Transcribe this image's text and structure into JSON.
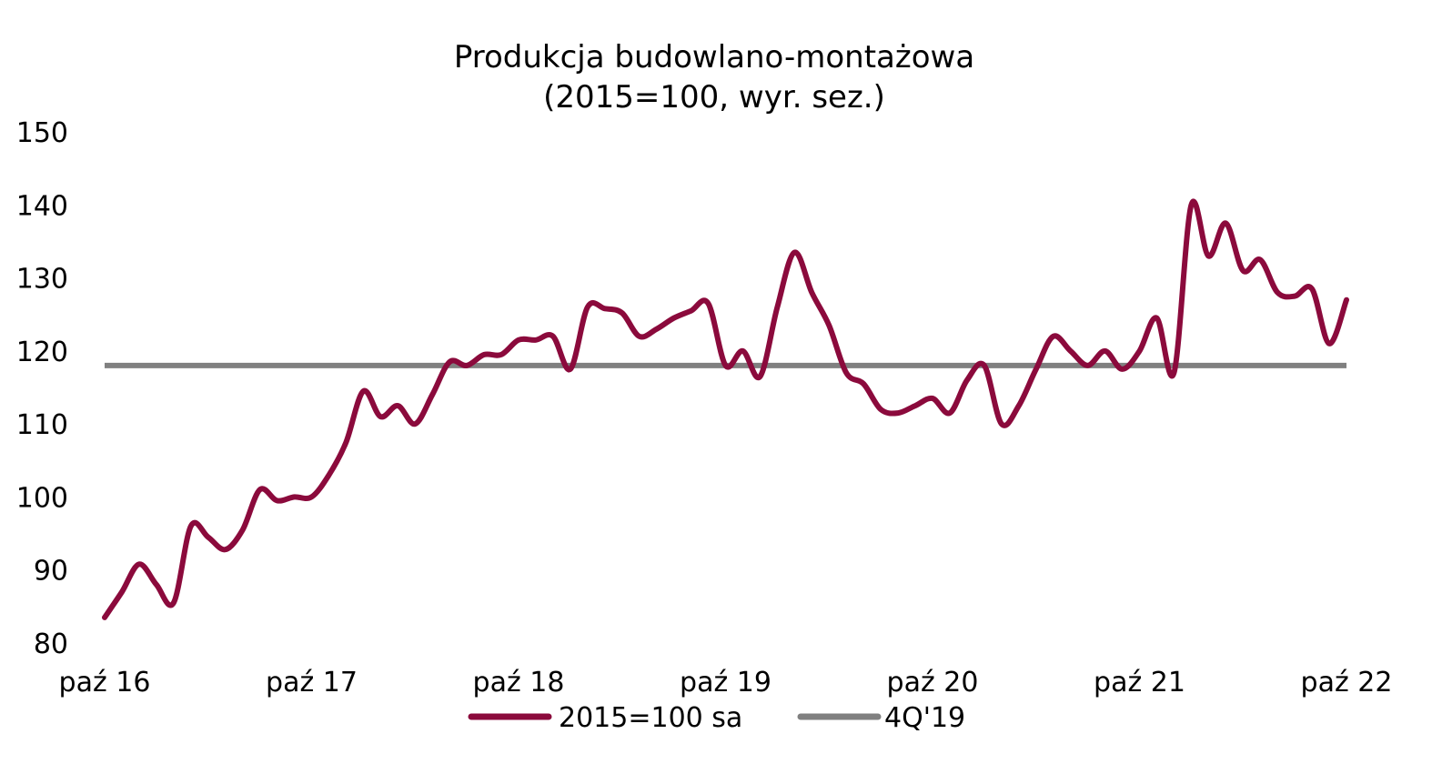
{
  "chart_data": {
    "type": "line",
    "title_line1": "Produkcja budowlano-montażowa",
    "title_line2": "(2015=100, wyr. sez.)",
    "xlabel": "",
    "ylabel": "",
    "ylim": [
      80,
      150
    ],
    "yticks": [
      "150",
      "140",
      "130",
      "120",
      "110",
      "100",
      "90",
      "80"
    ],
    "xticks": [
      "paź 16",
      "paź 17",
      "paź 18",
      "paź 19",
      "paź 20",
      "paź 21",
      "paź 22"
    ],
    "legend_position": "bottom",
    "series": [
      {
        "name": "2015=100 sa",
        "color": "#8B0A3C",
        "values": [
          83.5,
          87.0,
          90.8,
          88.0,
          85.5,
          96.0,
          94.5,
          92.8,
          95.5,
          101.0,
          99.5,
          100.0,
          100.0,
          103.0,
          107.5,
          114.5,
          111.0,
          112.5,
          110.0,
          114.0,
          118.5,
          118.0,
          119.5,
          119.5,
          121.5,
          121.5,
          122.0,
          117.5,
          126.0,
          125.8,
          125.2,
          122.0,
          123.0,
          124.5,
          125.5,
          126.5,
          118.0,
          120.0,
          116.5,
          126.0,
          133.5,
          128.0,
          123.5,
          117.0,
          115.5,
          112.0,
          111.5,
          112.5,
          113.5,
          111.5,
          116.0,
          118.0,
          110.0,
          112.5,
          117.5,
          122.0,
          120.0,
          118.0,
          120.0,
          117.5,
          120.0,
          124.5,
          117.0,
          140.0,
          133.0,
          137.5,
          131.0,
          132.5,
          128.0,
          127.5,
          128.5,
          121.0,
          127.0
        ]
      },
      {
        "name": "4Q'19",
        "color": "#808080",
        "values": [
          118.0,
          118.0
        ]
      }
    ],
    "legend": [
      "2015=100 sa",
      "4Q'19"
    ]
  }
}
